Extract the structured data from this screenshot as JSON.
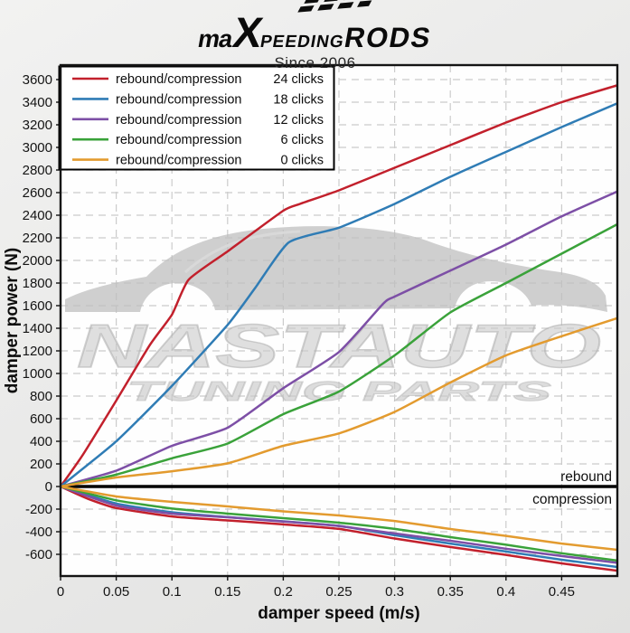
{
  "header": {
    "logo": {
      "ma": "ma",
      "x": "X",
      "peeding": "PEEDING",
      "rods": "RODS"
    },
    "tagline": "Since 2006"
  },
  "watermark": {
    "line1": "NASTAUTO",
    "line2": "TUNING PARTS"
  },
  "zone_labels": {
    "above": "rebound",
    "below": "compression"
  },
  "chart_data": {
    "type": "line",
    "title": "",
    "xlabel": "damper speed (m/s)",
    "ylabel": "damper power (N)",
    "xlim": [
      0,
      0.5
    ],
    "ylim": [
      -790,
      3730
    ],
    "grid": true,
    "grid_color": "#cbcbcb",
    "x_tick_values": [
      0,
      0.05,
      0.1,
      0.15,
      0.2,
      0.25,
      0.3,
      0.35,
      0.4,
      0.45
    ],
    "x_tick_labels": [
      "0",
      "0.05",
      "0.1",
      "0.15",
      "0.2",
      "0.25",
      "0.3",
      "0.35",
      "0.4",
      "0.45"
    ],
    "y_tick_values": [
      -600,
      -400,
      -200,
      0,
      200,
      400,
      600,
      800,
      1000,
      1200,
      1400,
      1600,
      1800,
      2000,
      2200,
      2400,
      2600,
      2800,
      3000,
      3200,
      3400,
      3600
    ],
    "y_tick_labels": [
      "-600",
      "-400",
      "-200",
      "0",
      "200",
      "400",
      "600",
      "800",
      "1000",
      "1200",
      "1400",
      "1600",
      "1800",
      "2000",
      "2200",
      "2400",
      "2600",
      "2800",
      "3000",
      "3200",
      "3400",
      "3600"
    ],
    "legend": {
      "position": "upper left",
      "entries": [
        {
          "label": "rebound/compression",
          "clicks": "24 clicks",
          "color": "#c2202c"
        },
        {
          "label": "rebound/compression",
          "clicks": "18 clicks",
          "color": "#2f7cb5"
        },
        {
          "label": "rebound/compression",
          "clicks": "12 clicks",
          "color": "#7d4fa6"
        },
        {
          "label": "rebound/compression",
          "clicks": "6 clicks",
          "color": "#3aa23a"
        },
        {
          "label": "rebound/compression",
          "clicks": "0 clicks",
          "color": "#e39b2f"
        }
      ]
    },
    "series": [
      {
        "name": "24 clicks",
        "color": "#c2202c",
        "rebound": {
          "x": [
            0,
            0.02,
            0.05,
            0.08,
            0.1,
            0.115,
            0.15,
            0.2,
            0.215,
            0.25,
            0.3,
            0.35,
            0.4,
            0.45,
            0.5
          ],
          "y": [
            0,
            280,
            760,
            1250,
            1520,
            1830,
            2080,
            2440,
            2500,
            2620,
            2820,
            3020,
            3220,
            3400,
            3550
          ]
        },
        "compression": {
          "x": [
            0,
            0.025,
            0.05,
            0.1,
            0.15,
            0.2,
            0.25,
            0.3,
            0.35,
            0.4,
            0.45,
            0.5
          ],
          "y": [
            0,
            -110,
            -190,
            -265,
            -300,
            -335,
            -375,
            -460,
            -535,
            -605,
            -680,
            -745
          ]
        }
      },
      {
        "name": "18 clicks",
        "color": "#2f7cb5",
        "rebound": {
          "x": [
            0,
            0.05,
            0.1,
            0.15,
            0.175,
            0.205,
            0.25,
            0.3,
            0.35,
            0.4,
            0.45,
            0.5
          ],
          "y": [
            0,
            400,
            890,
            1430,
            1760,
            2160,
            2290,
            2500,
            2740,
            2960,
            3180,
            3390
          ]
        },
        "compression": {
          "x": [
            0,
            0.05,
            0.1,
            0.15,
            0.2,
            0.25,
            0.3,
            0.35,
            0.4,
            0.45,
            0.5
          ],
          "y": [
            0,
            -150,
            -228,
            -270,
            -308,
            -348,
            -430,
            -505,
            -575,
            -648,
            -712
          ]
        }
      },
      {
        "name": "12 clicks",
        "color": "#7d4fa6",
        "rebound": {
          "x": [
            0,
            0.05,
            0.1,
            0.15,
            0.2,
            0.25,
            0.29,
            0.3,
            0.35,
            0.4,
            0.45,
            0.5
          ],
          "y": [
            0,
            140,
            360,
            520,
            870,
            1190,
            1620,
            1680,
            1910,
            2140,
            2390,
            2610
          ]
        },
        "compression": {
          "x": [
            0,
            0.05,
            0.1,
            0.15,
            0.2,
            0.25,
            0.3,
            0.35,
            0.4,
            0.45,
            0.5
          ],
          "y": [
            0,
            -168,
            -240,
            -272,
            -310,
            -350,
            -415,
            -480,
            -550,
            -615,
            -675
          ]
        }
      },
      {
        "name": "6 clicks",
        "color": "#3aa23a",
        "rebound": {
          "x": [
            0,
            0.05,
            0.1,
            0.15,
            0.2,
            0.25,
            0.3,
            0.35,
            0.4,
            0.45,
            0.5
          ],
          "y": [
            0,
            105,
            250,
            380,
            640,
            840,
            1160,
            1540,
            1800,
            2060,
            2320
          ]
        },
        "compression": {
          "x": [
            0,
            0.05,
            0.1,
            0.15,
            0.2,
            0.25,
            0.3,
            0.35,
            0.4,
            0.45,
            0.5
          ],
          "y": [
            0,
            -122,
            -195,
            -240,
            -280,
            -320,
            -375,
            -448,
            -515,
            -590,
            -655
          ]
        }
      },
      {
        "name": "0 clicks",
        "color": "#e39b2f",
        "rebound": {
          "x": [
            0,
            0.05,
            0.1,
            0.15,
            0.2,
            0.25,
            0.3,
            0.35,
            0.4,
            0.45,
            0.5
          ],
          "y": [
            0,
            80,
            135,
            205,
            360,
            470,
            660,
            920,
            1160,
            1330,
            1490
          ]
        },
        "compression": {
          "x": [
            0,
            0.05,
            0.1,
            0.15,
            0.2,
            0.25,
            0.3,
            0.35,
            0.4,
            0.45,
            0.5
          ],
          "y": [
            0,
            -88,
            -136,
            -176,
            -220,
            -256,
            -305,
            -376,
            -437,
            -505,
            -560
          ]
        }
      }
    ]
  }
}
